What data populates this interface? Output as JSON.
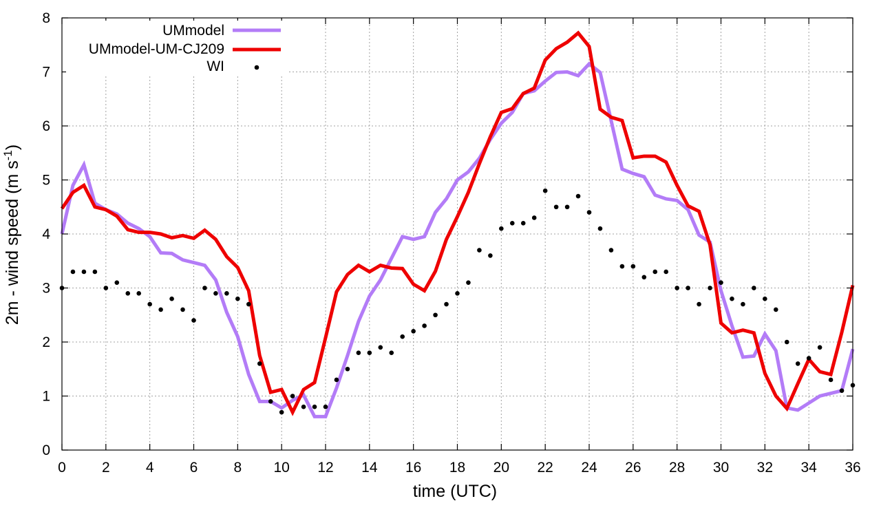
{
  "chart_data": {
    "type": "line",
    "title": "",
    "xlabel": "time (UTC)",
    "ylabel_main": "2m - wind speed  (m s",
    "ylabel_sup": "-1",
    "ylabel_close": ")",
    "xlim": [
      0,
      36
    ],
    "ylim": [
      0,
      8
    ],
    "xticks": [
      0,
      2,
      4,
      6,
      8,
      10,
      12,
      14,
      16,
      18,
      20,
      22,
      24,
      26,
      28,
      30,
      32,
      34,
      36
    ],
    "yticks": [
      0,
      1,
      2,
      3,
      4,
      5,
      6,
      7,
      8
    ],
    "grid": true,
    "legend_position": "top-left",
    "series": [
      {
        "name": "UMmodel",
        "style": "line",
        "color": "#b37cf7",
        "x": [
          0,
          0.5,
          1,
          1.5,
          2,
          2.5,
          3,
          3.5,
          4,
          4.5,
          5,
          5.5,
          6,
          6.5,
          7,
          7.5,
          8,
          8.5,
          9,
          9.5,
          10,
          10.5,
          11,
          11.5,
          12,
          12.5,
          13,
          13.5,
          14,
          14.5,
          15,
          15.5,
          16,
          16.5,
          17,
          17.5,
          18,
          18.5,
          19,
          19.5,
          20,
          20.5,
          21,
          21.5,
          22,
          22.5,
          23,
          23.5,
          24,
          24.5,
          25,
          25.5,
          26,
          26.5,
          27,
          27.5,
          28,
          28.5,
          29,
          29.5,
          30,
          30.5,
          31,
          31.5,
          32,
          32.5,
          33,
          33.5,
          34,
          34.5,
          35,
          35.5,
          36
        ],
        "values": [
          4.0,
          4.9,
          5.28,
          4.57,
          4.45,
          4.37,
          4.2,
          4.1,
          3.95,
          3.65,
          3.64,
          3.52,
          3.47,
          3.42,
          3.15,
          2.55,
          2.1,
          1.4,
          0.9,
          0.9,
          0.78,
          0.92,
          1.02,
          0.62,
          0.62,
          1.15,
          1.75,
          2.38,
          2.85,
          3.15,
          3.55,
          3.95,
          3.9,
          3.95,
          4.4,
          4.65,
          5.0,
          5.15,
          5.4,
          5.75,
          6.05,
          6.25,
          6.6,
          6.65,
          6.83,
          6.99,
          7.0,
          6.93,
          7.15,
          6.99,
          6.1,
          5.2,
          5.12,
          5.06,
          4.72,
          4.65,
          4.62,
          4.45,
          3.98,
          3.85,
          2.95,
          2.3,
          1.72,
          1.74,
          2.15,
          1.84,
          0.78,
          0.74,
          0.87,
          1.0,
          1.05,
          1.1,
          1.87
        ]
      },
      {
        "name": "UMmodel-UM-CJ209",
        "style": "line",
        "color": "#ee0000",
        "x": [
          0,
          0.5,
          1,
          1.5,
          2,
          2.5,
          3,
          3.5,
          4,
          4.5,
          5,
          5.5,
          6,
          6.5,
          7,
          7.5,
          8,
          8.5,
          9,
          9.5,
          10,
          10.5,
          11,
          11.5,
          12,
          12.5,
          13,
          13.5,
          14,
          14.5,
          15,
          15.5,
          16,
          16.5,
          17,
          17.5,
          18,
          18.5,
          19,
          19.5,
          20,
          20.5,
          21,
          21.5,
          22,
          22.5,
          23,
          23.5,
          24,
          24.5,
          25,
          25.5,
          26,
          26.5,
          27,
          27.5,
          28,
          28.5,
          29,
          29.5,
          30,
          30.5,
          31,
          31.5,
          32,
          32.5,
          33,
          33.5,
          34,
          34.5,
          35,
          35.5,
          36
        ],
        "values": [
          4.47,
          4.77,
          4.9,
          4.5,
          4.45,
          4.33,
          4.08,
          4.03,
          4.03,
          4.0,
          3.93,
          3.97,
          3.92,
          4.07,
          3.9,
          3.58,
          3.38,
          2.95,
          1.75,
          1.07,
          1.12,
          0.7,
          1.12,
          1.25,
          2.08,
          2.93,
          3.25,
          3.42,
          3.3,
          3.42,
          3.37,
          3.36,
          3.07,
          2.95,
          3.31,
          3.9,
          4.32,
          4.77,
          5.3,
          5.8,
          6.25,
          6.32,
          6.6,
          6.7,
          7.22,
          7.43,
          7.55,
          7.72,
          7.47,
          6.31,
          6.16,
          6.1,
          5.41,
          5.44,
          5.44,
          5.33,
          4.9,
          4.52,
          4.42,
          3.8,
          2.35,
          2.17,
          2.22,
          2.17,
          1.42,
          1.0,
          0.77,
          1.23,
          1.68,
          1.45,
          1.4,
          2.18,
          3.05
        ]
      },
      {
        "name": "WI",
        "style": "points",
        "color": "#000000",
        "x": [
          0,
          0.5,
          1,
          1.5,
          2,
          2.5,
          3,
          3.5,
          4,
          4.5,
          5,
          5.5,
          6,
          6.5,
          7,
          7.5,
          8,
          8.5,
          9,
          9.5,
          10,
          10.5,
          11,
          11.5,
          12,
          12.5,
          13,
          13.5,
          14,
          14.5,
          15,
          15.5,
          16,
          16.5,
          17,
          17.5,
          18,
          18.5,
          19,
          19.5,
          20,
          20.5,
          21,
          21.5,
          22,
          22.5,
          23,
          23.5,
          24,
          24.5,
          25,
          25.5,
          26,
          26.5,
          27,
          27.5,
          28,
          28.5,
          29,
          29.5,
          30,
          30.5,
          31,
          31.5,
          32,
          32.5,
          33,
          33.5,
          34,
          34.5,
          35,
          35.5,
          36
        ],
        "values": [
          3.0,
          3.3,
          3.3,
          3.3,
          3.0,
          3.1,
          2.9,
          2.9,
          2.7,
          2.6,
          2.8,
          2.6,
          2.4,
          3.0,
          2.9,
          2.9,
          2.8,
          2.7,
          1.6,
          0.9,
          0.7,
          1.0,
          0.8,
          0.8,
          0.8,
          1.3,
          1.5,
          1.8,
          1.8,
          1.9,
          1.8,
          2.1,
          2.2,
          2.3,
          2.5,
          2.7,
          2.9,
          3.1,
          3.7,
          3.6,
          4.1,
          4.2,
          4.2,
          4.3,
          4.8,
          4.5,
          4.5,
          4.7,
          4.4,
          4.1,
          3.7,
          3.4,
          3.4,
          3.2,
          3.3,
          3.3,
          3.0,
          3.0,
          2.7,
          3.0,
          3.1,
          2.8,
          2.7,
          3.0,
          2.8,
          2.6,
          2.0,
          1.6,
          1.7,
          1.9,
          1.3,
          1.1,
          1.2
        ]
      }
    ]
  }
}
